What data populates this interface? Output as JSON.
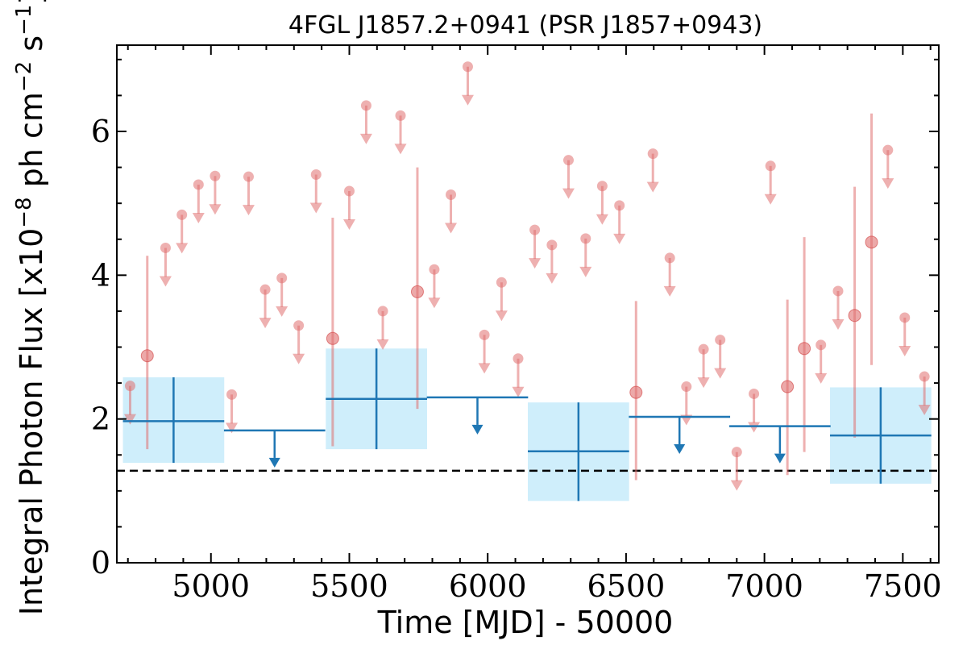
{
  "chart_data": {
    "type": "scatter",
    "title": "4FGL J1857.2+0941 (PSR J1857+0943)",
    "xlabel": "Time [MJD] - 50000",
    "ylabel": "Integral Photon Flux [x10",
    "ylabel_exp": "−8",
    "ylabel_units": " ph cm",
    "ylabel_exp2": "−2",
    "ylabel_units2": " s",
    "ylabel_exp3": "−1",
    "ylabel_close": "]",
    "xlim": [
      4660,
      7630
    ],
    "ylim": [
      0,
      7.2
    ],
    "x_ticks": [
      5000,
      5500,
      6000,
      6500,
      7000,
      7500
    ],
    "y_ticks": [
      0,
      2,
      4,
      6
    ],
    "x_tick_labels": [
      "5000",
      "5500",
      "6000",
      "6500",
      "7000",
      "7500"
    ],
    "y_tick_labels": [
      "0",
      "2",
      "4",
      "6"
    ],
    "reference_line": {
      "y": 1.28,
      "style": "dashed",
      "color": "#000000"
    },
    "colors": {
      "short_bins": "#e07070",
      "long_bins": "#1f77b4",
      "box_fill": "#cfeefb"
    },
    "short_bin_upper_limits": [
      {
        "x": 4708,
        "y": 2.46
      },
      {
        "x": 4836,
        "y": 4.38
      },
      {
        "x": 4895,
        "y": 4.84
      },
      {
        "x": 4955,
        "y": 5.26
      },
      {
        "x": 5015,
        "y": 5.38
      },
      {
        "x": 5075,
        "y": 2.34
      },
      {
        "x": 5136,
        "y": 5.37
      },
      {
        "x": 5196,
        "y": 3.8
      },
      {
        "x": 5256,
        "y": 3.96
      },
      {
        "x": 5317,
        "y": 3.3
      },
      {
        "x": 5380,
        "y": 5.4
      },
      {
        "x": 5500,
        "y": 5.17
      },
      {
        "x": 5561,
        "y": 6.36
      },
      {
        "x": 5621,
        "y": 3.5
      },
      {
        "x": 5685,
        "y": 6.22
      },
      {
        "x": 5807,
        "y": 4.08
      },
      {
        "x": 5867,
        "y": 5.12
      },
      {
        "x": 5928,
        "y": 6.9
      },
      {
        "x": 5988,
        "y": 3.17
      },
      {
        "x": 6050,
        "y": 3.9
      },
      {
        "x": 6110,
        "y": 2.84
      },
      {
        "x": 6170,
        "y": 4.63
      },
      {
        "x": 6232,
        "y": 4.42
      },
      {
        "x": 6292,
        "y": 5.6
      },
      {
        "x": 6354,
        "y": 4.51
      },
      {
        "x": 6414,
        "y": 5.24
      },
      {
        "x": 6476,
        "y": 4.97
      },
      {
        "x": 6597,
        "y": 5.69
      },
      {
        "x": 6658,
        "y": 4.24
      },
      {
        "x": 6718,
        "y": 2.45
      },
      {
        "x": 6780,
        "y": 2.97
      },
      {
        "x": 6840,
        "y": 3.1
      },
      {
        "x": 6900,
        "y": 1.54
      },
      {
        "x": 6962,
        "y": 2.35
      },
      {
        "x": 7022,
        "y": 5.52
      },
      {
        "x": 7204,
        "y": 3.03
      },
      {
        "x": 7266,
        "y": 3.78
      },
      {
        "x": 7446,
        "y": 5.74
      },
      {
        "x": 7507,
        "y": 3.41
      },
      {
        "x": 7578,
        "y": 2.59
      }
    ],
    "short_bin_detections": [
      {
        "x": 4770,
        "y": 2.88,
        "yerr_low": 1.58,
        "yerr_high": 4.27
      },
      {
        "x": 5440,
        "y": 3.12,
        "yerr_low": 1.62,
        "yerr_high": 4.8
      },
      {
        "x": 5746,
        "y": 3.77,
        "yerr_low": 2.14,
        "yerr_high": 5.5
      },
      {
        "x": 6536,
        "y": 2.37,
        "yerr_low": 1.15,
        "yerr_high": 3.64
      },
      {
        "x": 7083,
        "y": 2.45,
        "yerr_low": 1.22,
        "yerr_high": 3.66
      },
      {
        "x": 7144,
        "y": 2.98,
        "yerr_low": 1.54,
        "yerr_high": 4.53
      },
      {
        "x": 7326,
        "y": 3.44,
        "yerr_low": 1.74,
        "yerr_high": 5.23
      },
      {
        "x": 7387,
        "y": 4.46,
        "yerr_low": 2.75,
        "yerr_high": 6.25
      }
    ],
    "long_bin_detections": [
      {
        "x": 4865,
        "xerr": 183,
        "y": 1.97,
        "y_low": 1.39,
        "y_high": 2.58
      },
      {
        "x": 5598,
        "xerr": 183,
        "y": 2.28,
        "y_low": 1.58,
        "y_high": 2.98
      },
      {
        "x": 6328,
        "xerr": 183,
        "y": 1.55,
        "y_low": 0.86,
        "y_high": 2.23
      },
      {
        "x": 7420,
        "xerr": 183,
        "y": 1.77,
        "y_low": 1.1,
        "y_high": 2.44
      }
    ],
    "long_bin_upper_limits": [
      {
        "x": 5230,
        "xerr": 183,
        "y": 1.84
      },
      {
        "x": 5963,
        "xerr": 183,
        "y": 2.3
      },
      {
        "x": 6693,
        "xerr": 183,
        "y": 2.03
      },
      {
        "x": 7056,
        "xerr": 183,
        "y": 1.9
      }
    ]
  }
}
